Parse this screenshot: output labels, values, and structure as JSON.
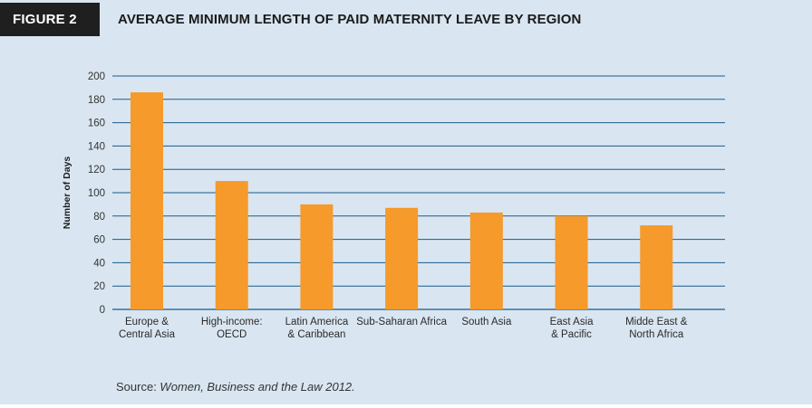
{
  "figure": {
    "badge": "FIGURE 2",
    "title": "AVERAGE MINIMUM LENGTH OF PAID MATERNITY LEAVE BY REGION"
  },
  "source": {
    "prefix": "Source: ",
    "text": "Women, Business and the Law 2012."
  },
  "colors": {
    "bar": "#f59a2b",
    "grid": "#1a5a8a",
    "background": "#d9e6f1"
  },
  "chart_data": {
    "type": "bar",
    "title": "AVERAGE MINIMUM LENGTH OF PAID MATERNITY LEAVE BY REGION",
    "xlabel": "",
    "ylabel": "Number of Days",
    "ylim": [
      0,
      200
    ],
    "yticks": [
      0,
      20,
      40,
      60,
      80,
      100,
      120,
      140,
      160,
      180,
      200
    ],
    "grid": true,
    "categories": [
      [
        "Europe &",
        "Central Asia"
      ],
      [
        "High-income:",
        "OECD"
      ],
      [
        "Latin America",
        "& Caribbean"
      ],
      [
        "Sub-Saharan Africa"
      ],
      [
        "South Asia"
      ],
      [
        "East Asia",
        "& Pacific"
      ],
      [
        "Midde East &",
        "North Africa"
      ]
    ],
    "values": [
      186,
      110,
      90,
      87,
      83,
      80,
      72
    ]
  }
}
